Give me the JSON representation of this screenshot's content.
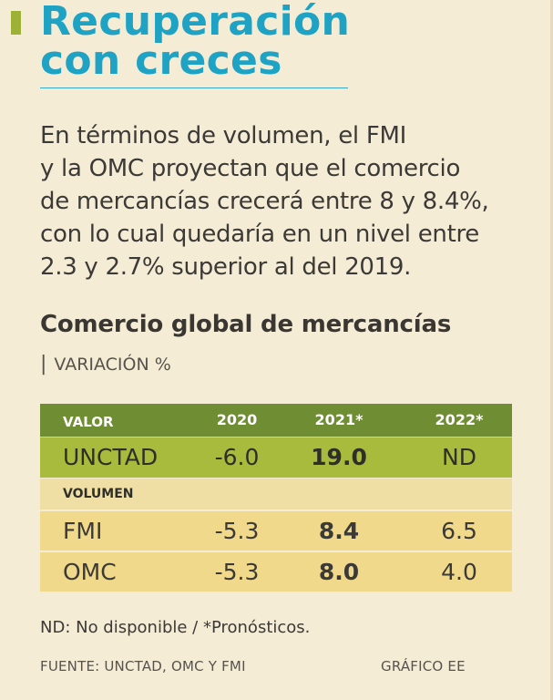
{
  "headline": {
    "line1": "Recuperación",
    "line2": "con creces"
  },
  "intro": {
    "lines": [
      "En términos de volumen, el FMI",
      "y la OMC proyectan que el comercio",
      "de mercancías crecerá entre 8 y 8.4%,",
      "con lo cual quedaría en un nivel entre",
      "2.3 y 2.7% superior al del 2019."
    ]
  },
  "chart_data": {
    "type": "table",
    "title": "Comercio global de mercancías",
    "subtitle": "VARIACIÓN %",
    "header": {
      "label": "VALOR",
      "years": [
        "2020",
        "2021*",
        "2022*"
      ]
    },
    "valor_rows": [
      {
        "label": "UNCTAD",
        "values": [
          "-6.0",
          "19.0",
          "ND"
        ]
      }
    ],
    "section_label": "VOLUMEN",
    "volumen_rows": [
      {
        "label": "FMI",
        "values": [
          "-5.3",
          "8.4",
          "6.5"
        ]
      },
      {
        "label": "OMC",
        "values": [
          "-5.3",
          "8.0",
          "4.0"
        ]
      }
    ],
    "highlight_column": "2021*"
  },
  "footer": {
    "note": "ND: No disponible / *Pronósticos.",
    "source": "FUENTE: UNCTAD, OMC Y FMI",
    "credit": "GRÁFICO EE"
  },
  "colors": {
    "background": "#f5ecd6",
    "headline": "#1fa3c4",
    "accent": "#9db137",
    "header_row": "#6f8d33",
    "unctad_row": "#a9bb3d",
    "section_row": "#efdfa5",
    "data_row": "#f0d98b"
  }
}
